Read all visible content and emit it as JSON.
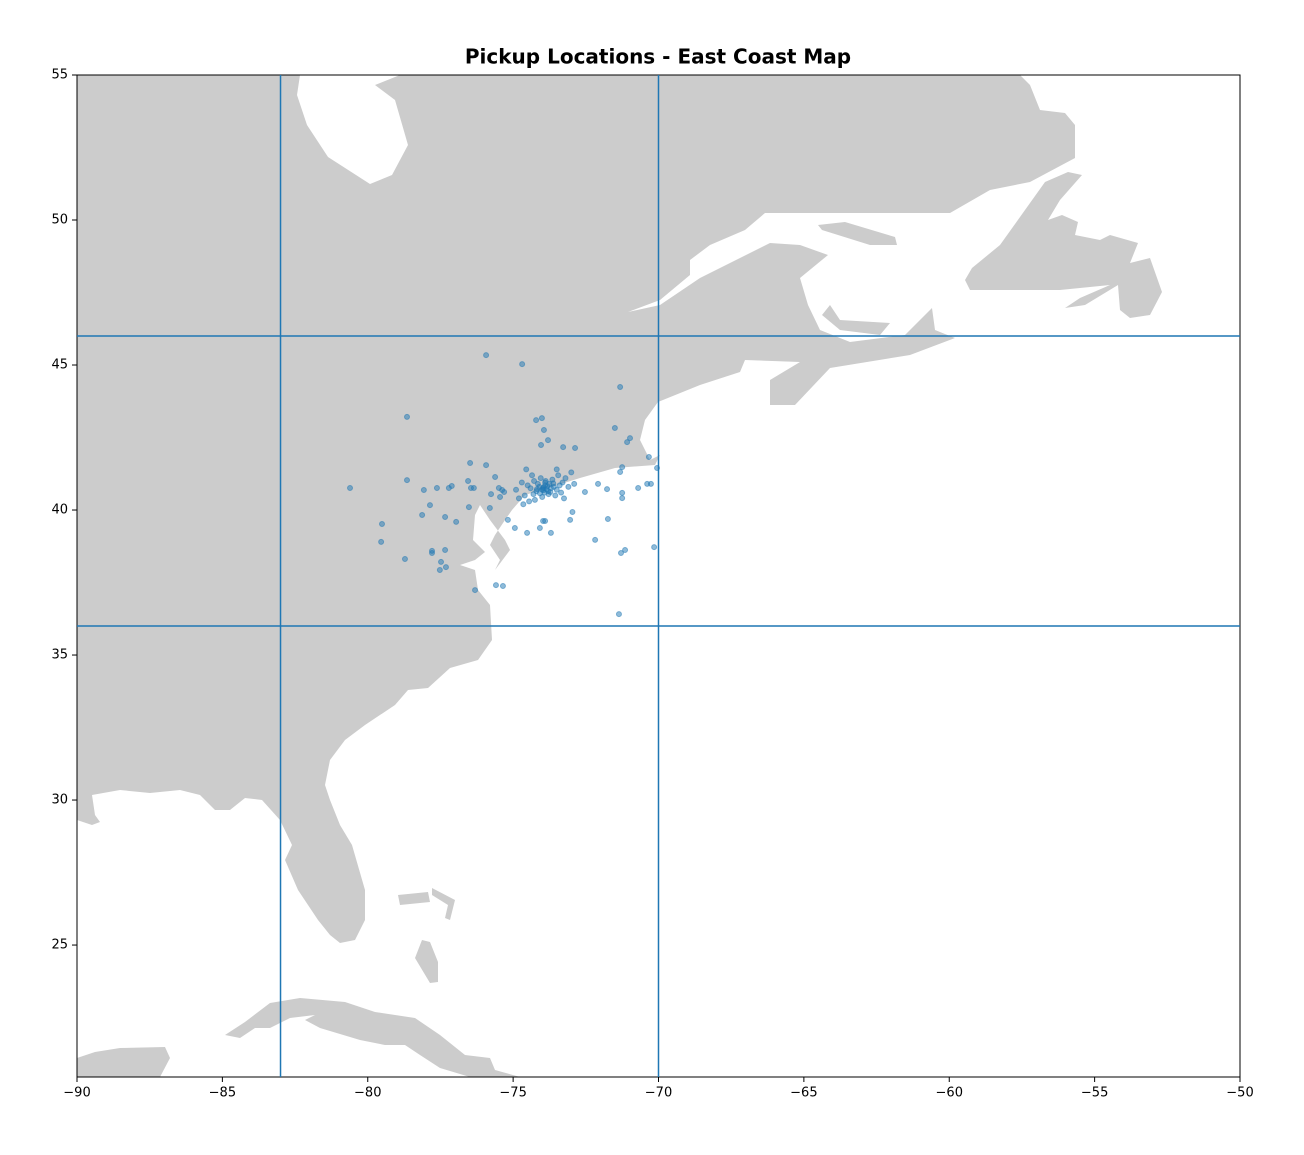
{
  "chart_data": {
    "type": "scatter",
    "title": "Pickup Locations - East Coast Map",
    "xlim": [
      -90,
      -50
    ],
    "ylim": [
      20.45,
      55
    ],
    "xticks": [
      {
        "value": -90,
        "label": "−90"
      },
      {
        "value": -85,
        "label": "−85"
      },
      {
        "value": -80,
        "label": "−80"
      },
      {
        "value": -75,
        "label": "−75"
      },
      {
        "value": -70,
        "label": "−70"
      },
      {
        "value": -65,
        "label": "−65"
      },
      {
        "value": -60,
        "label": "−60"
      },
      {
        "value": -55,
        "label": "−55"
      },
      {
        "value": -50,
        "label": "−50"
      }
    ],
    "yticks": [
      25,
      30,
      35,
      40,
      45,
      50,
      55
    ],
    "vlines": [
      -83,
      -70
    ],
    "hlines": [
      36,
      46
    ],
    "line_color": "#1f77b4",
    "color": "#1f77b4",
    "alpha": 0.5,
    "x": [
      -75.93,
      -74.69,
      -71.32,
      -78.65,
      -74.21,
      -74.01,
      -73.94,
      -73.8,
      -71.5,
      -71.08,
      -70.98,
      -74.04,
      -73.28,
      -72.87,
      -80.61,
      -78.65,
      -78.07,
      -77.62,
      -77.21,
      -77.11,
      -76.48,
      -75.93,
      -76.55,
      -76.45,
      -76.35,
      -79.51,
      -79.54,
      -78.72,
      -78.13,
      -77.86,
      -77.34,
      -76.96,
      -77.79,
      -77.79,
      -77.34,
      -77.48,
      -77.52,
      -77.31,
      -76.31,
      -75.59,
      -75.35,
      -76.52,
      -75.8,
      -75.76,
      -75.62,
      -72.18,
      -71.74,
      -71.15,
      -71.29,
      -71.36,
      -70.15,
      -70.7,
      -70.39,
      -70.26,
      -70.05,
      -70.33,
      -71.32,
      -71.25,
      -71.25,
      -71.25,
      -71.77,
      -72.08,
      -72.53,
      -73.9,
      -73.97,
      -73.7,
      -74.08,
      -74.94,
      -74.52,
      -75.18,
      -73.04,
      -72.96,
      -75.45,
      -75.38,
      -75.31,
      -75.49,
      -73.95,
      -73.98,
      -73.85,
      -74.0,
      -73.9,
      -73.8,
      -73.92,
      -74.1,
      -73.75,
      -73.7,
      -73.6,
      -74.2,
      -74.15,
      -73.88,
      -73.5,
      -73.4,
      -74.3,
      -74.05,
      -73.65,
      -74.4,
      -73.3,
      -74.25,
      -73.55,
      -74.0,
      -73.78,
      -73.2,
      -74.5,
      -74.35,
      -73.1,
      -74.6,
      -73.96,
      -73.82,
      -74.08,
      -73.72,
      -73.9,
      -74.18,
      -73.62,
      -74.28,
      -73.45,
      -74.45,
      -73.35,
      -74.7,
      -73.0,
      -74.8,
      -73.5,
      -74.55,
      -72.9,
      -74.9,
      -73.25,
      -74.65
    ],
    "values": [
      45.34,
      45.03,
      44.24,
      43.21,
      43.1,
      43.17,
      42.76,
      42.41,
      42.83,
      42.34,
      42.48,
      42.24,
      42.17,
      42.14,
      40.76,
      41.03,
      40.69,
      40.76,
      40.76,
      40.83,
      41.62,
      41.55,
      41.0,
      40.76,
      40.76,
      39.52,
      38.9,
      38.31,
      39.83,
      40.17,
      39.76,
      39.59,
      38.59,
      38.52,
      38.62,
      38.21,
      37.93,
      38.03,
      37.24,
      37.41,
      37.38,
      40.1,
      40.07,
      40.55,
      41.14,
      38.97,
      39.69,
      38.62,
      38.52,
      36.41,
      38.72,
      40.76,
      40.9,
      40.9,
      41.45,
      41.83,
      41.31,
      41.48,
      40.59,
      40.41,
      40.72,
      40.9,
      40.62,
      39.62,
      39.62,
      39.21,
      39.38,
      39.38,
      39.21,
      39.66,
      39.66,
      39.93,
      40.45,
      40.69,
      40.62,
      40.76,
      40.78,
      40.75,
      40.72,
      40.7,
      40.85,
      40.65,
      40.6,
      40.8,
      40.9,
      40.75,
      40.8,
      40.65,
      40.9,
      41.0,
      40.7,
      40.85,
      40.55,
      41.1,
      41.05,
      40.75,
      40.95,
      40.35,
      40.5,
      40.45,
      40.55,
      41.1,
      40.85,
      41.2,
      40.8,
      40.5,
      40.68,
      40.82,
      40.58,
      40.62,
      40.95,
      40.72,
      40.92,
      41.0,
      41.2,
      40.3,
      40.6,
      40.95,
      41.3,
      40.4,
      41.4,
      41.4,
      40.9,
      40.7,
      40.4,
      40.2
    ]
  }
}
